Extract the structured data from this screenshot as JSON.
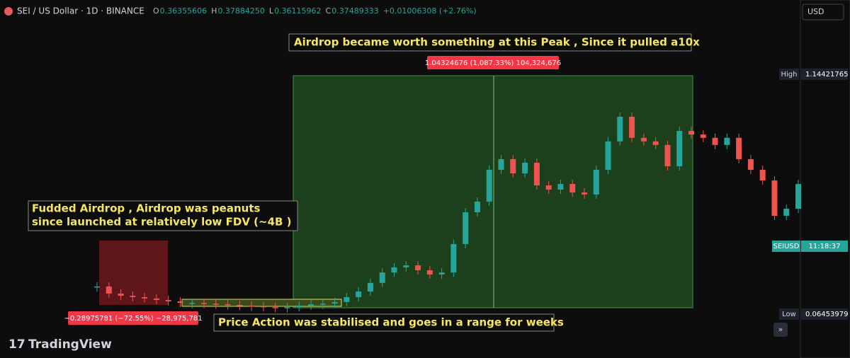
{
  "header": {
    "symbol": "SEI / US Dollar · 1D · BINANCE",
    "ohlc": [
      {
        "key": "O",
        "value": "0.36355606"
      },
      {
        "key": "H",
        "value": "0.37884250"
      },
      {
        "key": "L",
        "value": "0.36115962"
      },
      {
        "key": "C",
        "value": "0.37489333"
      }
    ],
    "change": "+0.01006308 (+2.76%)",
    "currency": "USD"
  },
  "annotations": {
    "peak": "Airdrop became worth something at this Peak , Since it pulled a10x",
    "fud_1": "Fudded Airdrop , Airdrop was peanuts",
    "fud_2": "since launched at relatively low FDV (~4B )",
    "range": "Price Action was stabilised and goes in a range for weeks",
    "gain_label": "1.04324676 (1,087.33%) 104,324,676",
    "loss_label": "−0.28975781 (−72.55%) −28,975,781"
  },
  "price_scale": {
    "high_label": "High",
    "high": 1.14421765,
    "low_label": "Low",
    "low": 0.06453979,
    "symbol_label": "SEIUSD",
    "countdown": "11:18:37"
  },
  "brand": "TradingView",
  "chart_data": {
    "type": "candlestick",
    "up_color": "#26a69a",
    "down_color": "#ef5350",
    "ylim": [
      -0.082,
      1.351
    ],
    "values": [
      0.189,
      0.157,
      0.147,
      0.141,
      0.135,
      0.128,
      0.122,
      0.115,
      0.115,
      0.112,
      0.109,
      0.106,
      0.103,
      0.1,
      0.096,
      0.093,
      0.096,
      0.103,
      0.109,
      0.112,
      0.119,
      0.141,
      0.166,
      0.205,
      0.252,
      0.275,
      0.284,
      0.262,
      0.243,
      0.252,
      0.38,
      0.523,
      0.571,
      0.714,
      0.762,
      0.698,
      0.746,
      0.644,
      0.625,
      0.65,
      0.612,
      0.603,
      0.714,
      0.842,
      0.953,
      0.858,
      0.842,
      0.826,
      0.73,
      0.889,
      0.873,
      0.858,
      0.826,
      0.858,
      0.762,
      0.714,
      0.666,
      0.507,
      0.539,
      0.65
    ]
  }
}
